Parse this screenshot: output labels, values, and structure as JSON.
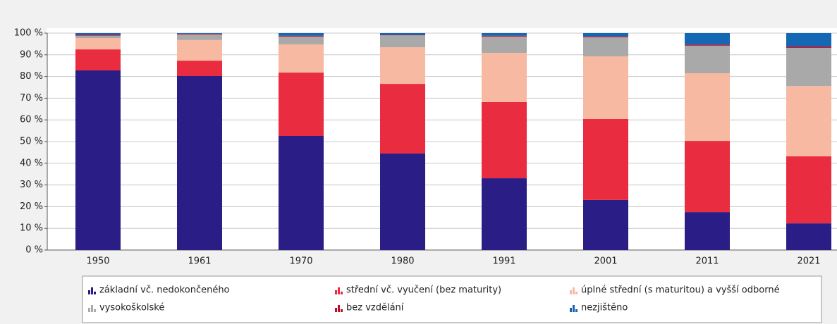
{
  "chart_data": {
    "type": "bar",
    "stacked": true,
    "categories": [
      "1950",
      "1961",
      "1970",
      "1980",
      "1991",
      "2001",
      "2011",
      "2021"
    ],
    "series": [
      {
        "name": "základní vč. nedokončeného",
        "color": "#2a1d86",
        "values": [
          82.8,
          80.2,
          52.6,
          44.5,
          33.1,
          23.1,
          17.5,
          12.3
        ]
      },
      {
        "name": "střední vč. vyučení (bez maturity)",
        "color": "#e92c40",
        "values": [
          9.7,
          7.1,
          29.2,
          32.1,
          35.1,
          37.3,
          32.8,
          30.9
        ]
      },
      {
        "name": "úplné střední (s maturitou) a vyšší odborné",
        "color": "#f8b9a2",
        "values": [
          5.2,
          9.5,
          13.0,
          16.9,
          22.7,
          28.9,
          31.2,
          32.4
        ]
      },
      {
        "name": "vysokoškolské",
        "color": "#a9a9a9",
        "values": [
          1.1,
          2.6,
          3.6,
          5.5,
          7.5,
          8.8,
          12.7,
          17.6
        ]
      },
      {
        "name": "bez vzdělání",
        "color": "#b8102a",
        "values": [
          0.4,
          0.3,
          0.4,
          0.2,
          0.4,
          0.4,
          0.5,
          0.6
        ]
      },
      {
        "name": "nezjištěno",
        "color": "#1467b3",
        "values": [
          0.8,
          0.3,
          1.2,
          0.8,
          1.2,
          1.5,
          5.3,
          6.2
        ]
      }
    ],
    "ylim": [
      0,
      100
    ],
    "yticks": [
      {
        "value": 0,
        "label": "0 %"
      },
      {
        "value": 10,
        "label": "10 %"
      },
      {
        "value": 20,
        "label": "20 %"
      },
      {
        "value": 30,
        "label": "30 %"
      },
      {
        "value": 40,
        "label": "40 %"
      },
      {
        "value": 50,
        "label": "50 %"
      },
      {
        "value": 60,
        "label": "60 %"
      },
      {
        "value": 70,
        "label": "70 %"
      },
      {
        "value": 80,
        "label": "80 %"
      },
      {
        "value": 90,
        "label": "90 %"
      },
      {
        "value": 100,
        "label": "100 %"
      }
    ],
    "grid": true
  }
}
